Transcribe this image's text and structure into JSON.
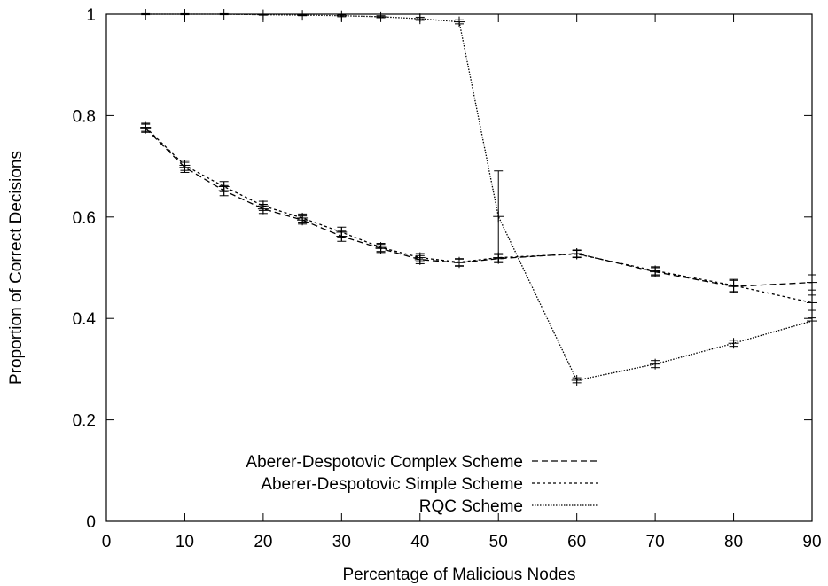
{
  "chart_data": {
    "type": "line",
    "title": "",
    "xlabel": "Percentage of Malicious Nodes",
    "ylabel": "Proportion of Correct Decisions",
    "xlim": [
      0,
      90
    ],
    "ylim": [
      0,
      1
    ],
    "xticks": [
      0,
      10,
      20,
      30,
      40,
      50,
      60,
      70,
      80,
      90
    ],
    "yticks": [
      0,
      0.2,
      0.4,
      0.6,
      0.8,
      1
    ],
    "ytick_labels": [
      "0",
      "0.2",
      "0.4",
      "0.6",
      "0.8",
      "1"
    ],
    "grid": false,
    "legend_position": "bottom-left",
    "series": [
      {
        "name": "Aberer-Despotovic Complex Scheme",
        "dash": "dashed",
        "x": [
          5,
          10,
          15,
          20,
          25,
          30,
          35,
          40,
          45,
          50,
          60,
          70,
          80,
          90
        ],
        "y": [
          0.775,
          0.698,
          0.652,
          0.616,
          0.594,
          0.562,
          0.538,
          0.516,
          0.51,
          0.518,
          0.528,
          0.492,
          0.463,
          0.471
        ],
        "err": [
          0.008,
          0.01,
          0.01,
          0.009,
          0.008,
          0.01,
          0.008,
          0.008,
          0.007,
          0.008,
          0.007,
          0.008,
          0.012,
          0.015
        ]
      },
      {
        "name": "Aberer-Despotovic Simple Scheme",
        "dash": "dotted",
        "x": [
          5,
          10,
          15,
          20,
          25,
          30,
          35,
          40,
          45,
          50,
          60,
          70,
          80,
          90
        ],
        "y": [
          0.777,
          0.702,
          0.66,
          0.622,
          0.598,
          0.57,
          0.54,
          0.52,
          0.511,
          0.52,
          0.527,
          0.494,
          0.465,
          0.431
        ],
        "err": [
          0.008,
          0.01,
          0.01,
          0.009,
          0.008,
          0.01,
          0.008,
          0.008,
          0.007,
          0.008,
          0.007,
          0.008,
          0.012,
          0.015
        ]
      },
      {
        "name": "RQC Scheme",
        "dash": "fine-dotted",
        "x": [
          5,
          10,
          15,
          20,
          25,
          30,
          35,
          40,
          45,
          50,
          60,
          70,
          80,
          90
        ],
        "y": [
          1.0,
          1.0,
          1.0,
          0.999,
          0.998,
          0.997,
          0.995,
          0.991,
          0.985,
          0.601,
          0.278,
          0.31,
          0.351,
          0.395
        ],
        "err": [
          0.001,
          0.001,
          0.001,
          0.001,
          0.001,
          0.002,
          0.002,
          0.003,
          0.004,
          0.09,
          0.005,
          0.007,
          0.006,
          0.006
        ]
      }
    ]
  }
}
